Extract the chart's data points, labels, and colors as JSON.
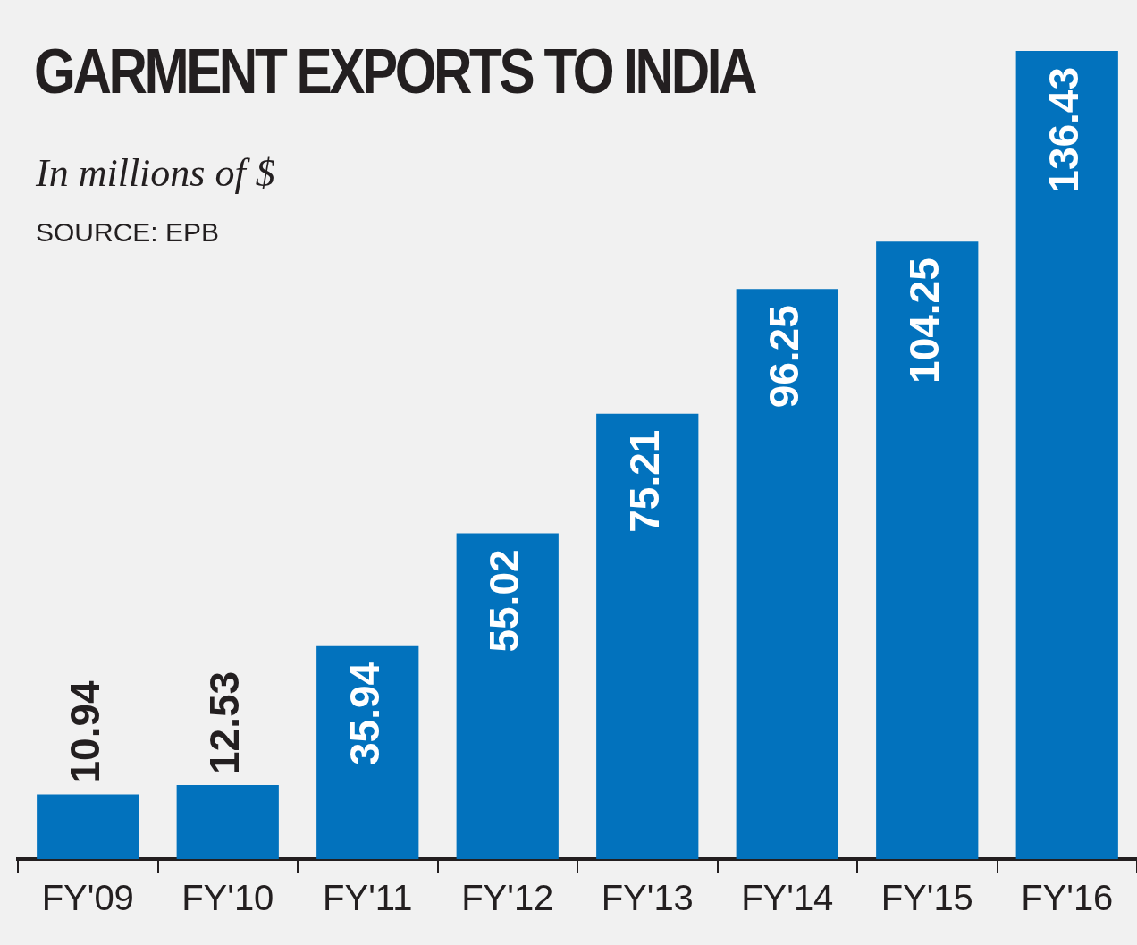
{
  "chart_data": {
    "type": "bar",
    "title": "GARMENT EXPORTS TO INDIA",
    "subtitle": "In millions of $",
    "annotations": [
      "SOURCE: EPB"
    ],
    "categories": [
      "FY'09",
      "FY'10",
      "FY'11",
      "FY'12",
      "FY'13",
      "FY'14",
      "FY'15",
      "FY'16"
    ],
    "values": [
      10.94,
      12.53,
      35.94,
      55.02,
      75.21,
      96.25,
      104.25,
      136.43
    ],
    "color": "#0272bd",
    "data_labels": true,
    "grid": false,
    "legend": false
  }
}
